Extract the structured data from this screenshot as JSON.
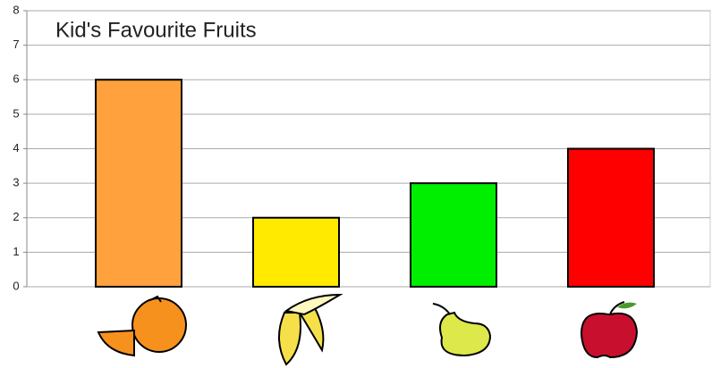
{
  "chart_data": {
    "type": "bar",
    "title": "Kid's Favourite Fruits",
    "categories": [
      null,
      null,
      null,
      null
    ],
    "values": [
      6,
      2,
      3,
      4
    ],
    "colors": [
      "#ffa23e",
      "#ffea00",
      "#00ee00",
      "#ff0000"
    ],
    "ylim": [
      0,
      8
    ],
    "yticks": [
      0,
      1,
      2,
      3,
      4,
      5,
      6,
      7,
      8
    ],
    "grid": true
  }
}
